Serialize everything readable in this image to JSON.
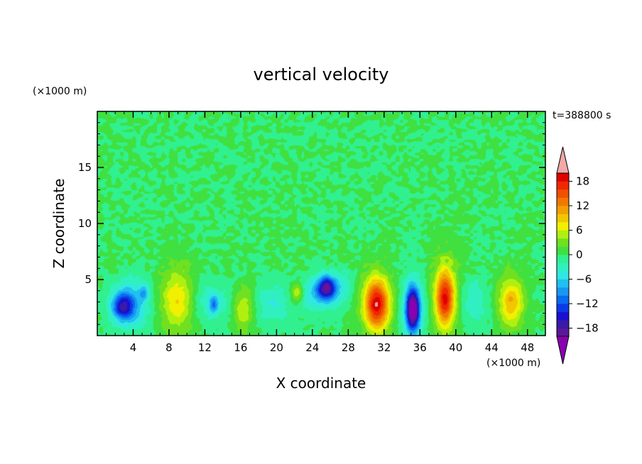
{
  "chart_data": {
    "type": "heatmap",
    "title": "vertical velocity",
    "xlabel": "X coordinate",
    "ylabel": "Z coordinate",
    "x_unit": "(×1000 m)",
    "y_unit": "(×1000 m)",
    "time_label": "t=388800 s",
    "xlim": [
      0,
      50
    ],
    "ylim": [
      0,
      20
    ],
    "x_ticks": [
      4,
      8,
      12,
      16,
      20,
      24,
      28,
      32,
      36,
      40,
      44,
      48
    ],
    "x_tick_labels": [
      "4",
      "8",
      "12",
      "16",
      "20",
      "24",
      "28",
      "32",
      "36",
      "40",
      "44",
      "48"
    ],
    "y_ticks": [
      5,
      10,
      15
    ],
    "y_tick_labels": [
      "5",
      "10",
      "15"
    ],
    "colorbar": {
      "levels": [
        -20,
        -18,
        -16,
        -14,
        -12,
        -10,
        -8,
        -6,
        -4,
        -2,
        0,
        2,
        4,
        6,
        8,
        10,
        12,
        14,
        16,
        18,
        20
      ],
      "tick_values": [
        18,
        12,
        6,
        0,
        -6,
        -12,
        -18
      ],
      "tick_labels": [
        "18",
        "12",
        "6",
        "0",
        "−6",
        "−12",
        "−18"
      ],
      "colors": [
        "#5a1898",
        "#3a1aa8",
        "#1a10d0",
        "#0a3ae8",
        "#0a6af0",
        "#1898f0",
        "#20c0f0",
        "#30e8e0",
        "#30f0c0",
        "#30f090",
        "#40e040",
        "#70e020",
        "#b0f010",
        "#f0f000",
        "#f0c800",
        "#f0a000",
        "#f07800",
        "#f05000",
        "#f02800",
        "#e00000"
      ],
      "under_color": "#8a00b0",
      "over_color": "#f0a8a8"
    },
    "features": [
      {
        "x": 2.8,
        "z": 2.6,
        "value": -12,
        "sx": 1.2,
        "sz": 1.2
      },
      {
        "x": 3.8,
        "z": 2.8,
        "value": -7,
        "sx": 2.0,
        "sz": 2.2
      },
      {
        "x": 5.2,
        "z": 3.8,
        "value": -6,
        "sx": 0.5,
        "sz": 0.7
      },
      {
        "x": 9.0,
        "z": 3.2,
        "value": 8,
        "sx": 2.0,
        "sz": 2.8
      },
      {
        "x": 12.5,
        "z": 3.0,
        "value": -4,
        "sx": 2.4,
        "sz": 1.8
      },
      {
        "x": 13.0,
        "z": 2.8,
        "value": -7,
        "sx": 0.5,
        "sz": 0.8
      },
      {
        "x": 16.3,
        "z": 2.4,
        "value": 6,
        "sx": 1.2,
        "sz": 2.0
      },
      {
        "x": 19.5,
        "z": 2.8,
        "value": -4,
        "sx": 2.0,
        "sz": 1.8
      },
      {
        "x": 22.3,
        "z": 3.8,
        "value": 7,
        "sx": 0.7,
        "sz": 0.9
      },
      {
        "x": 25.6,
        "z": 4.3,
        "value": -14,
        "sx": 1.0,
        "sz": 1.0
      },
      {
        "x": 25.0,
        "z": 3.8,
        "value": -7,
        "sx": 2.2,
        "sz": 1.5
      },
      {
        "x": 27.5,
        "z": 4.5,
        "value": -3,
        "sx": 1.2,
        "sz": 1.5
      },
      {
        "x": 31.2,
        "z": 2.8,
        "value": 17,
        "sx": 1.3,
        "sz": 2.2
      },
      {
        "x": 31.0,
        "z": 3.0,
        "value": 3,
        "sx": 2.6,
        "sz": 3.2
      },
      {
        "x": 35.2,
        "z": 2.3,
        "value": -19,
        "sx": 0.7,
        "sz": 1.8
      },
      {
        "x": 35.2,
        "z": 2.5,
        "value": -7,
        "sx": 1.3,
        "sz": 2.8
      },
      {
        "x": 38.8,
        "z": 3.3,
        "value": 15,
        "sx": 1.0,
        "sz": 2.4
      },
      {
        "x": 38.8,
        "z": 3.8,
        "value": 4,
        "sx": 1.7,
        "sz": 4.0
      },
      {
        "x": 42.0,
        "z": 3.0,
        "value": -4,
        "sx": 1.4,
        "sz": 2.0
      },
      {
        "x": 46.2,
        "z": 3.0,
        "value": 10,
        "sx": 1.4,
        "sz": 2.2
      }
    ]
  }
}
